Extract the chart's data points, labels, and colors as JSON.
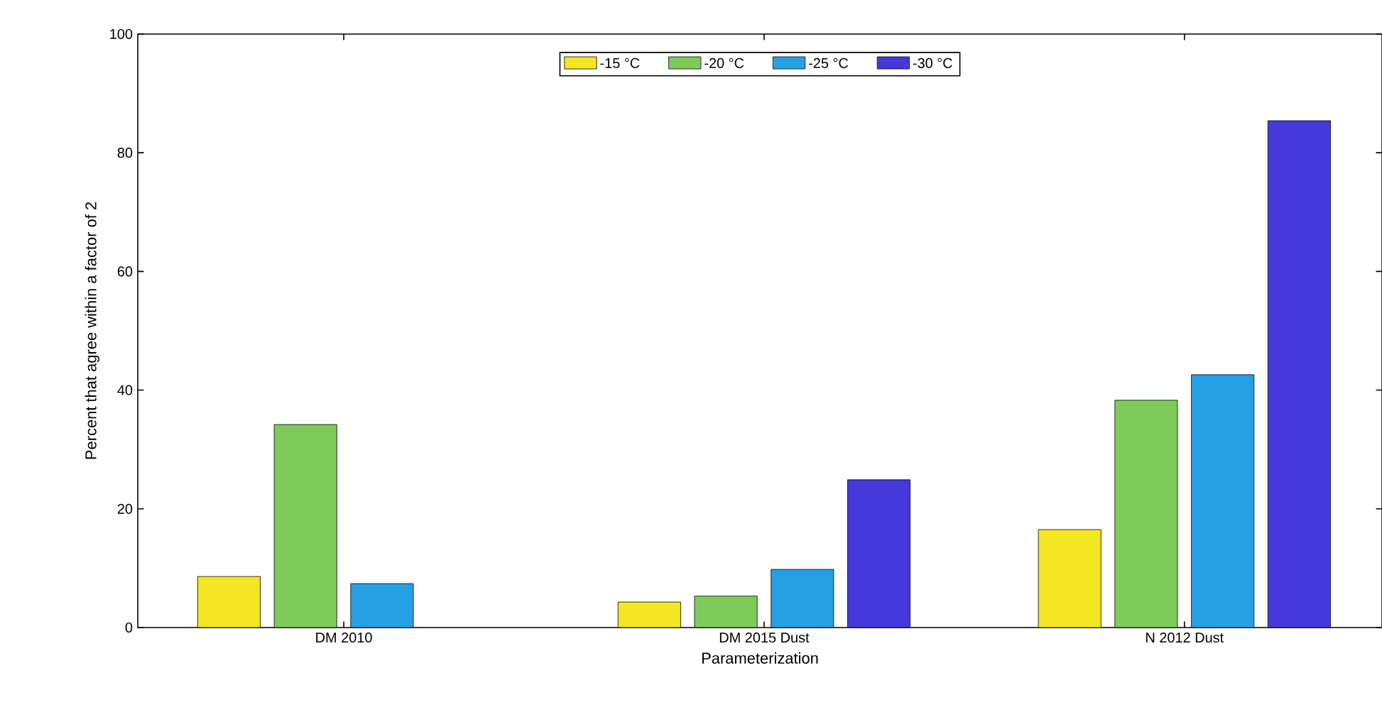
{
  "chart_data": {
    "type": "bar",
    "xlabel": "Parameterization",
    "ylabel": "Percent that agree within a factor of 2",
    "categories": [
      "DM 2010",
      "DM 2015 Dust",
      "N 2012 Dust"
    ],
    "series": [
      {
        "name": "-15 °C",
        "color": "#f3e622",
        "values": [
          8.6,
          4.3,
          16.5
        ]
      },
      {
        "name": "-20 °C",
        "color": "#7ecb5a",
        "values": [
          34.2,
          5.3,
          38.3
        ]
      },
      {
        "name": "-25 °C",
        "color": "#26a0e4",
        "values": [
          7.4,
          9.8,
          42.6
        ]
      },
      {
        "name": "-30 °C",
        "color": "#4639dc",
        "values": [
          null,
          24.9,
          85.4
        ]
      }
    ],
    "ylim": [
      0,
      100
    ],
    "yticks": [
      0,
      20,
      40,
      60,
      80,
      100
    ],
    "legend": "top",
    "grid": false
  }
}
